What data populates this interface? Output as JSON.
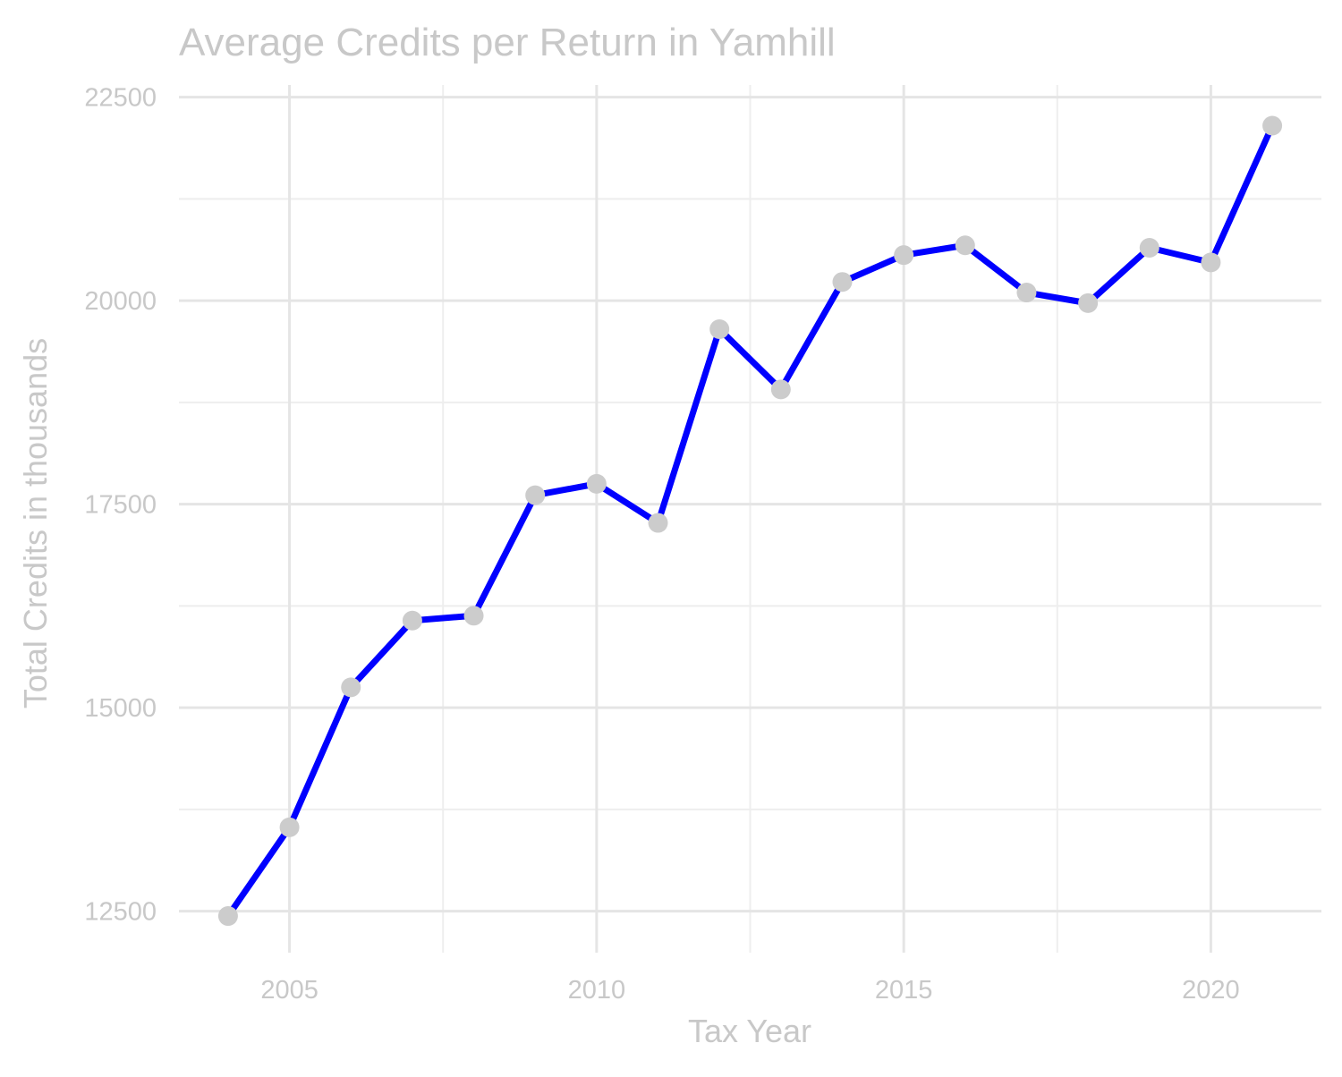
{
  "chart_data": {
    "type": "line",
    "title": "Average Credits per Return in Yamhill",
    "xlabel": "Tax Year",
    "ylabel": "Total Credits in thousands",
    "x": [
      2004,
      2005,
      2006,
      2007,
      2008,
      2009,
      2010,
      2011,
      2012,
      2013,
      2014,
      2015,
      2016,
      2017,
      2018,
      2019,
      2020,
      2021
    ],
    "series": [
      {
        "values": [
          12440,
          13530,
          15250,
          16070,
          16130,
          17610,
          17750,
          17270,
          19650,
          18910,
          20230,
          20560,
          20680,
          20100,
          19970,
          20650,
          20470,
          22150
        ]
      }
    ],
    "xlim": [
      2003.2,
      2021.8
    ],
    "ylim": [
      11990,
      22650
    ],
    "x_ticks": [
      2005,
      2010,
      2015,
      2020
    ],
    "x_minor_ticks": [
      2007.5,
      2012.5,
      2017.5
    ],
    "y_ticks": [
      12500,
      15000,
      17500,
      20000,
      22500
    ],
    "y_minor_ticks": [
      13750,
      16250,
      18750,
      21250
    ],
    "x_tick_labels": [
      "2005",
      "2010",
      "2015",
      "2020"
    ],
    "y_tick_labels": [
      "12500",
      "15000",
      "17500",
      "20000",
      "22500"
    ],
    "grid": true,
    "legend": "none",
    "colors": {
      "line": "#0000ff",
      "points": "#cccccc",
      "grid_major": "#e5e5e5",
      "grid_minor": "#eeeeee",
      "text": "#c8c8c8"
    }
  }
}
